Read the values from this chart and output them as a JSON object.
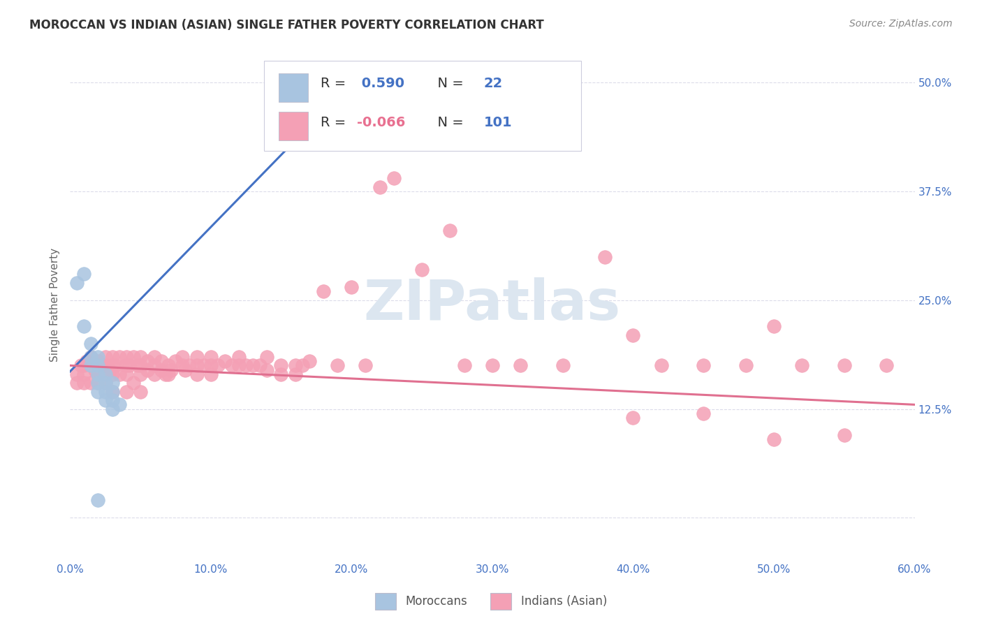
{
  "title": "MOROCCAN VS INDIAN (ASIAN) SINGLE FATHER POVERTY CORRELATION CHART",
  "source": "Source: ZipAtlas.com",
  "xlim": [
    0.0,
    0.6
  ],
  "ylim": [
    -0.05,
    0.54
  ],
  "moroccan_R": 0.59,
  "moroccan_N": 22,
  "indian_R": -0.066,
  "indian_N": 101,
  "moroccan_color": "#a8c4e0",
  "indian_color": "#f4a0b5",
  "moroccan_line_color": "#4472c4",
  "indian_line_color": "#e07090",
  "background_color": "#ffffff",
  "grid_color": "#d8d8e8",
  "ylabel_label": "Single Father Poverty",
  "moroccan_x": [
    0.005,
    0.01,
    0.01,
    0.015,
    0.015,
    0.015,
    0.02,
    0.02,
    0.02,
    0.02,
    0.02,
    0.025,
    0.025,
    0.025,
    0.025,
    0.03,
    0.03,
    0.03,
    0.03,
    0.035,
    0.18,
    0.02
  ],
  "moroccan_y": [
    0.27,
    0.28,
    0.22,
    0.2,
    0.185,
    0.175,
    0.185,
    0.175,
    0.165,
    0.155,
    0.145,
    0.165,
    0.155,
    0.145,
    0.135,
    0.155,
    0.145,
    0.135,
    0.125,
    0.13,
    0.435,
    0.02
  ],
  "indian_x": [
    0.005,
    0.005,
    0.008,
    0.01,
    0.01,
    0.01,
    0.012,
    0.015,
    0.015,
    0.018,
    0.02,
    0.02,
    0.02,
    0.022,
    0.025,
    0.025,
    0.025,
    0.028,
    0.03,
    0.03,
    0.03,
    0.03,
    0.032,
    0.035,
    0.035,
    0.04,
    0.04,
    0.04,
    0.04,
    0.042,
    0.045,
    0.045,
    0.048,
    0.05,
    0.05,
    0.05,
    0.05,
    0.055,
    0.055,
    0.06,
    0.06,
    0.06,
    0.065,
    0.065,
    0.068,
    0.07,
    0.07,
    0.072,
    0.075,
    0.08,
    0.08,
    0.082,
    0.085,
    0.09,
    0.09,
    0.09,
    0.095,
    0.1,
    0.1,
    0.1,
    0.105,
    0.11,
    0.115,
    0.12,
    0.12,
    0.125,
    0.13,
    0.135,
    0.14,
    0.14,
    0.15,
    0.15,
    0.16,
    0.16,
    0.165,
    0.17,
    0.18,
    0.19,
    0.2,
    0.21,
    0.22,
    0.23,
    0.25,
    0.27,
    0.28,
    0.3,
    0.32,
    0.35,
    0.38,
    0.4,
    0.42,
    0.45,
    0.48,
    0.5,
    0.52,
    0.55,
    0.58,
    0.4,
    0.45,
    0.5,
    0.55
  ],
  "indian_y": [
    0.165,
    0.155,
    0.175,
    0.175,
    0.165,
    0.155,
    0.18,
    0.185,
    0.155,
    0.17,
    0.18,
    0.165,
    0.155,
    0.175,
    0.185,
    0.175,
    0.155,
    0.17,
    0.185,
    0.175,
    0.165,
    0.145,
    0.175,
    0.185,
    0.165,
    0.185,
    0.175,
    0.165,
    0.145,
    0.175,
    0.185,
    0.155,
    0.175,
    0.185,
    0.175,
    0.165,
    0.145,
    0.18,
    0.17,
    0.185,
    0.175,
    0.165,
    0.18,
    0.17,
    0.165,
    0.175,
    0.165,
    0.17,
    0.18,
    0.185,
    0.175,
    0.17,
    0.175,
    0.185,
    0.175,
    0.165,
    0.175,
    0.185,
    0.175,
    0.165,
    0.175,
    0.18,
    0.175,
    0.185,
    0.175,
    0.175,
    0.175,
    0.175,
    0.185,
    0.17,
    0.175,
    0.165,
    0.175,
    0.165,
    0.175,
    0.18,
    0.26,
    0.175,
    0.265,
    0.175,
    0.38,
    0.39,
    0.285,
    0.33,
    0.175,
    0.175,
    0.175,
    0.175,
    0.3,
    0.21,
    0.175,
    0.175,
    0.175,
    0.22,
    0.175,
    0.175,
    0.175,
    0.115,
    0.12,
    0.09,
    0.095
  ],
  "moroccan_line_x": [
    0.0,
    0.185
  ],
  "moroccan_line_y": [
    0.168,
    0.475
  ],
  "indian_line_x": [
    0.0,
    0.6
  ],
  "indian_line_y": [
    0.175,
    0.13
  ],
  "x_tick_vals": [
    0.0,
    0.1,
    0.2,
    0.3,
    0.4,
    0.5,
    0.6
  ],
  "x_tick_labels": [
    "0.0%",
    "10.0%",
    "20.0%",
    "30.0%",
    "40.0%",
    "50.0%",
    "60.0%"
  ],
  "y_tick_vals": [
    0.0,
    0.125,
    0.25,
    0.375,
    0.5
  ],
  "y_tick_labels": [
    "",
    "12.5%",
    "25.0%",
    "37.5%",
    "50.0%"
  ],
  "legend_blue_color": "#4472c4",
  "legend_pink_color": "#e87090",
  "watermark_text": "ZIPatlas",
  "watermark_color": "#dce6f0"
}
